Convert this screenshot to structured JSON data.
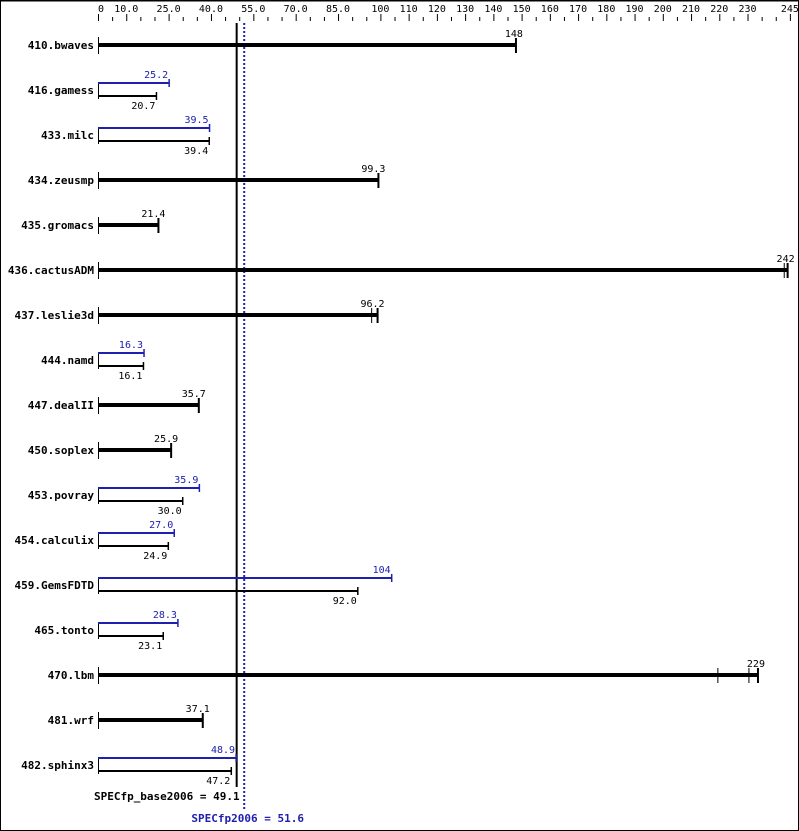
{
  "chart_data": {
    "type": "bar",
    "orientation": "horizontal",
    "xlim": [
      0,
      245
    ],
    "x_tick_labels": [
      "0",
      "10.0",
      "25.0",
      "40.0",
      "55.0",
      "70.0",
      "85.0",
      "100",
      "110",
      "120",
      "130",
      "140",
      "150",
      "160",
      "170",
      "180",
      "190",
      "200",
      "210",
      "220",
      "230",
      "245"
    ],
    "x_tick_values": [
      0,
      10,
      25,
      40,
      55,
      70,
      85,
      100,
      110,
      120,
      130,
      140,
      150,
      160,
      170,
      180,
      190,
      200,
      210,
      220,
      230,
      245
    ],
    "minor_tick_step": 5,
    "colors": {
      "base": "#000000",
      "peak": "#2020b0"
    },
    "benchmarks": [
      {
        "name": "410.bwaves",
        "base": 148,
        "base_label": "148"
      },
      {
        "name": "416.gamess",
        "base": 20.7,
        "base_label": "20.7",
        "peak": 25.2,
        "peak_label": "25.2"
      },
      {
        "name": "433.milc",
        "base": 39.4,
        "base_label": "39.4",
        "peak": 39.5,
        "peak_label": "39.5"
      },
      {
        "name": "434.zeusmp",
        "base": 99.3,
        "base_label": "99.3"
      },
      {
        "name": "435.gromacs",
        "base": 21.4,
        "base_label": "21.4"
      },
      {
        "name": "436.cactusADM",
        "base": 242,
        "base_label": "242",
        "runs": [
          243,
          244.2
        ]
      },
      {
        "name": "437.leslie3d",
        "base": 96.2,
        "base_label": "96.2",
        "runs": [
          96.9,
          99
        ]
      },
      {
        "name": "444.namd",
        "base": 16.1,
        "base_label": "16.1",
        "peak": 16.3,
        "peak_label": "16.3"
      },
      {
        "name": "447.dealII",
        "base": 35.7,
        "base_label": "35.7"
      },
      {
        "name": "450.soplex",
        "base": 25.9,
        "base_label": "25.9"
      },
      {
        "name": "453.povray",
        "base": 30.0,
        "base_label": "30.0",
        "peak": 35.9,
        "peak_label": "35.9"
      },
      {
        "name": "454.calculix",
        "base": 24.9,
        "base_label": "24.9",
        "peak": 27.0,
        "peak_label": "27.0"
      },
      {
        "name": "459.GemsFDTD",
        "base": 92.0,
        "base_label": "92.0",
        "peak": 104,
        "peak_label": "104"
      },
      {
        "name": "465.tonto",
        "base": 23.1,
        "base_label": "23.1",
        "peak": 28.3,
        "peak_label": "28.3"
      },
      {
        "name": "470.lbm",
        "base": 229,
        "base_label": "229",
        "runs": [
          219.5,
          230.5,
          233.7
        ]
      },
      {
        "name": "481.wrf",
        "base": 37.1,
        "base_label": "37.1"
      },
      {
        "name": "482.sphinx3",
        "base": 47.2,
        "base_label": "47.2",
        "peak": 48.9,
        "peak_label": "48.9"
      }
    ],
    "summary": {
      "base_value": 49.1,
      "base_label": "SPECfp_base2006 = 49.1",
      "peak_value": 51.6,
      "peak_label": "SPECfp2006 = 51.6"
    }
  }
}
